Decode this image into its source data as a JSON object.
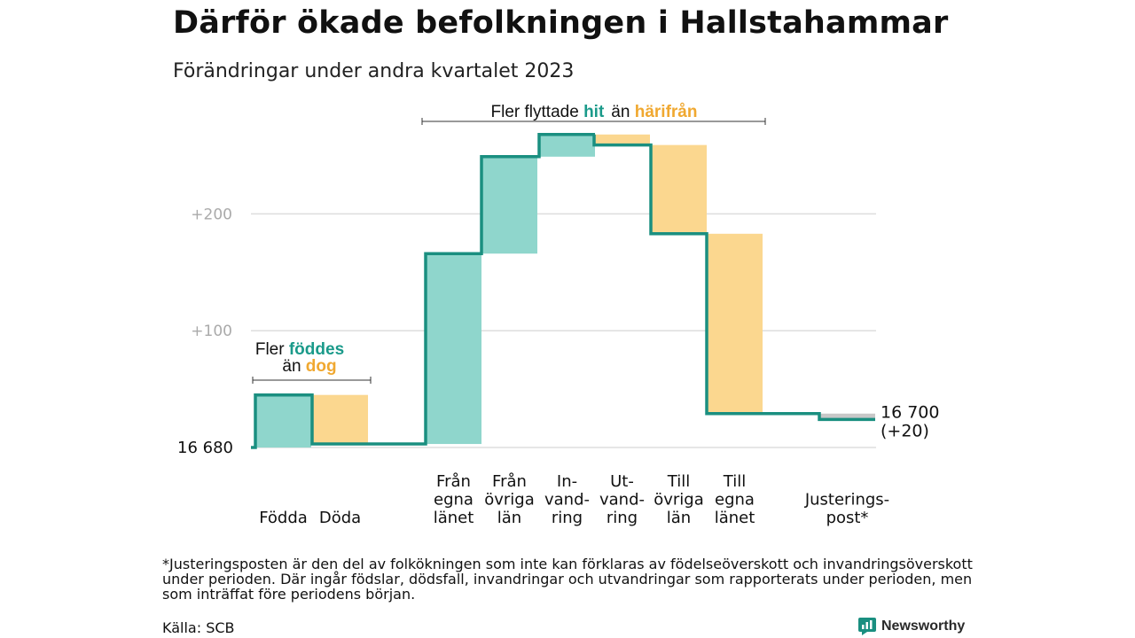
{
  "header": {
    "title": "Därför ökade befolkningen i Hallstahammar",
    "subtitle": "Förändringar under andra kvartalet 2023"
  },
  "chart_data": {
    "type": "waterfall",
    "baseline_value": 16680,
    "baseline_label": "16  680",
    "yticks": [
      {
        "value": 100,
        "label": "+100"
      },
      {
        "value": 200,
        "label": "+200"
      }
    ],
    "steps": [
      {
        "lines": [
          "Födda"
        ],
        "delta": 45,
        "kind": "in"
      },
      {
        "lines": [
          "Döda"
        ],
        "delta": -42,
        "kind": "out"
      },
      {
        "lines": [
          "Från",
          "egna",
          "länet"
        ],
        "delta": 163,
        "kind": "in"
      },
      {
        "lines": [
          "Från",
          "övriga",
          "län"
        ],
        "delta": 83,
        "kind": "in"
      },
      {
        "lines": [
          "In-",
          "vand-",
          "ring"
        ],
        "delta": 19,
        "kind": "in"
      },
      {
        "lines": [
          "Ut-",
          "vand-",
          "ring"
        ],
        "delta": -9,
        "kind": "out"
      },
      {
        "lines": [
          "Till",
          "övriga",
          "län"
        ],
        "delta": -76,
        "kind": "out"
      },
      {
        "lines": [
          "Till",
          "egna",
          "länet"
        ],
        "delta": -154,
        "kind": "out"
      },
      {
        "lines": [
          "Justerings-",
          "post*"
        ],
        "delta": -5,
        "kind": "adjust"
      }
    ],
    "end_label": {
      "line1": "16 700",
      "line2": "(+20)"
    },
    "bracket_left": {
      "line1_pre": "Fler ",
      "line1_highlight": "föddes",
      "line2_pre": "än ",
      "line2_highlight": "dog"
    },
    "bracket_right": {
      "pre": "Fler flyttade ",
      "highlight1": "hit",
      "mid": "än ",
      "highlight2": "härifrån"
    },
    "colors": {
      "in_fill": "#8fd6cc",
      "out_fill": "#fbd78f",
      "adjust_fill": "#c8c8c8",
      "line": "#1a8f80",
      "in_text": "#1a9a8a",
      "out_text": "#f0a830",
      "grid": "#dddddd",
      "tick_text": "#aaaaaa"
    }
  },
  "footer": {
    "footnote": "*Justeringsposten är den del av folkökningen som inte kan förklaras av födelseöverskott och invandringsöverskott under perioden. Där ingår födslar, dödsfall, invandringar och utvandringar som rapporterats under perioden, men som inträffat före periodens början.",
    "source": "Källa: SCB",
    "brand": "Newsworthy"
  }
}
